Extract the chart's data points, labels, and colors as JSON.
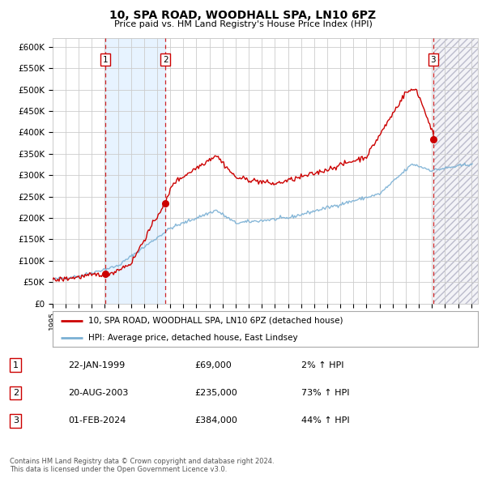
{
  "title": "10, SPA ROAD, WOODHALL SPA, LN10 6PZ",
  "subtitle": "Price paid vs. HM Land Registry's House Price Index (HPI)",
  "ylim": [
    0,
    620000
  ],
  "yticks": [
    0,
    50000,
    100000,
    150000,
    200000,
    250000,
    300000,
    350000,
    400000,
    450000,
    500000,
    550000,
    600000
  ],
  "ytick_labels": [
    "£0",
    "£50K",
    "£100K",
    "£150K",
    "£200K",
    "£250K",
    "£300K",
    "£350K",
    "£400K",
    "£450K",
    "£500K",
    "£550K",
    "£600K"
  ],
  "sale_color": "#cc0000",
  "hpi_color": "#7ab0d4",
  "background_color": "#ffffff",
  "grid_color": "#cccccc",
  "sale_prices": [
    69000,
    235000,
    384000
  ],
  "footer": "Contains HM Land Registry data © Crown copyright and database right 2024.\nThis data is licensed under the Open Government Licence v3.0.",
  "legend_line1": "10, SPA ROAD, WOODHALL SPA, LN10 6PZ (detached house)",
  "legend_line2": "HPI: Average price, detached house, East Lindsey",
  "table_rows": [
    [
      "1",
      "22-JAN-1999",
      "£69,000",
      "2% ↑ HPI"
    ],
    [
      "2",
      "20-AUG-2003",
      "£235,000",
      "73% ↑ HPI"
    ],
    [
      "3",
      "01-FEB-2024",
      "£384,000",
      "44% ↑ HPI"
    ]
  ],
  "xlim_start": 1995.0,
  "xlim_end": 2027.5,
  "future_start": 2024.08,
  "sale_date_years": [
    1999.06,
    2003.63,
    2024.09
  ]
}
